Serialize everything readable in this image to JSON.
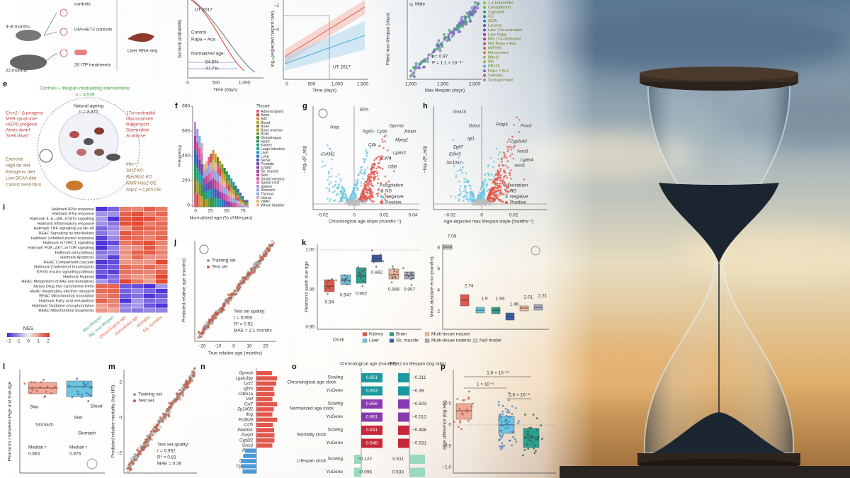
{
  "a": [
    "controls",
    "4–8 months",
    "UM-HET3 controls",
    "Liver RNA-seq",
    "22 months",
    "20 ITP treatments"
  ],
  "b": [
    "UT 2017",
    "Control",
    "Rapa + Aca",
    "Normalized age:",
    "54.9%",
    "47.7%",
    "Survival probability",
    "0",
    "500",
    "1,000",
    "Time (days)"
  ],
  "c": [
    "−2",
    "−4",
    "UT 2017",
    "log₁₀(expected hazard rate)",
    "0",
    "500",
    "1,000",
    "1,500",
    "Time (days)"
  ],
  "d": {
    "texts": [
      "Male",
      "Fitted max lifespan (days)",
      "r = 0.97",
      "P = 1.1 × 10⁻⁸⁷",
      "1,000",
      "1,500",
      "2,000",
      "Max lifespan (days)"
    ],
    "legend": [
      "1,3-butanediol",
      "Canagliflozin",
      "Captopril",
      "CC",
      "GGA",
      "Leucine",
      "Late 17α-oestradiol",
      "Late Rapa",
      "Mid 17α-oestradiol",
      "Mid Rapa + Aca",
      "MIF098",
      "Minocycline",
      "MitoQ",
      "NR",
      "PB125",
      "Rapa + Aca",
      "Sulindac",
      "Syringaresinol"
    ],
    "colors": [
      "#8dc63f",
      "#6dbf4b",
      "#2e9e6a",
      "#1f8a8a",
      "#3a7ab8",
      "#4c5fb0",
      "#6a4fa8",
      "#8a3f9e",
      "#a0408c",
      "#c04a7a",
      "#d05c5c",
      "#d87a3c",
      "#c9a23a",
      "#9fb43c",
      "#5aa8d8",
      "#7a66c8",
      "#b05aa0",
      "#d070b0"
    ]
  },
  "e": {
    "label": "e",
    "texts": [
      "Controls + lifespan-modulating interventions:",
      "n = 4,539",
      "Natural ageing",
      "n = 3,375"
    ],
    "left": [
      "Ercc1⁻ᐟΔ progeria",
      "MVA syndrome",
      "HGPS progeria",
      "Ames dwarf",
      "Snell dwarf"
    ],
    "right": [
      "17α-oestradiol",
      "Glucosamine",
      "Rapamycin",
      "Spermidine",
      "Acarbose"
    ],
    "bottom_left": [
      "Exercise",
      "High fat diet",
      "Ketogenic diet",
      "Low BCAA diet",
      "Caloric restriction"
    ],
    "bottom_right": [
      "Myc⁺ᐟ⁻",
      "Sirt1 KO",
      "Rps6kb1 KO",
      "NMR Has2 OE",
      "Nqo1 + Cyb5 OE"
    ]
  },
  "f": {
    "label": "f",
    "texts": [
      "800",
      "600",
      "400",
      "200",
      "0",
      "0",
      "25",
      "50",
      "75",
      "Frequency",
      "Normalized age (% of lifespan)",
      "Tissue"
    ],
    "tissues": [
      "Adrenal gland",
      "Aorta",
      "BAT",
      "Blood",
      "Bone",
      "Bone marrow",
      "Brain",
      "Oesophagus",
      "Heart",
      "Kidney",
      "Large intestine",
      "Liver",
      "Lung",
      "Nerve",
      "Prostate",
      "scWAT",
      "Sk. muscle",
      "Skin",
      "Small intestine",
      "Spinal cord",
      "Spleen",
      "Stomach",
      "Thymus",
      "Uterus",
      "vWAT",
      "Whole bladder"
    ],
    "colors": [
      "#e0607e",
      "#c05050",
      "#e08a3a",
      "#c8a020",
      "#8a7a30",
      "#a0a030",
      "#6a9a30",
      "#3a8a3a",
      "#20a050",
      "#20a080",
      "#20a0a0",
      "#2090c0",
      "#3070c0",
      "#4a58b0",
      "#6a4aa8",
      "#8a40a0",
      "#a8409a",
      "#c04890",
      "#d05aa8",
      "#d878c0",
      "#b890d0",
      "#9aa0d8",
      "#80b0e0",
      "#e0a0c0",
      "#c0c060",
      "#f0b0a0"
    ]
  },
  "g": {
    "label": "g",
    "genes": [
      "B2m",
      "Gpnmb",
      "Jchain",
      "Nrep",
      "Rgs5",
      "Cybb",
      "Col3a1",
      "Lgals3",
      "Cd74",
      "Ccl8",
      "Mpeg1",
      "C4b"
    ],
    "texts": [
      "−0.02",
      "0",
      "0.02",
      "0.04",
      "Chronological age slope (months⁻¹)",
      "−log₁₀(P_adj)",
      "Association",
      "NS",
      "Negative",
      "Positive"
    ]
  },
  "h": {
    "label": "h",
    "genes": [
      "Gna14",
      "Ddost",
      "Egfl7",
      "Igf1",
      "Elovl3",
      "Slc10a2",
      "Fmo3",
      "Cyp2c40",
      "Acot3",
      "Lgals4",
      "Acot1",
      "Fkbp5"
    ],
    "texts": [
      "−0.02",
      "0",
      "0.02",
      "Age-adjusted max lifespan slope (months⁻¹)",
      "−log₁₀(P_adj)",
      "Association",
      "NS",
      "Negative",
      "Positive"
    ]
  },
  "i": {
    "label": "i",
    "rows": [
      "Hallmark IFNα response",
      "Hallmark IFNγ response",
      "Hallmark IL-6–JAK–STAT3 signalling",
      "Hallmark Inflammatory response",
      "Hallmark TNF signalling via NF-κB",
      "REAC Signalling by interleukins",
      "Hallmark Unfolded protein response",
      "Hallmark mTORC1 signalling",
      "Hallmark PI3K–AKT–mTOR signalling",
      "Hallmark p53 pathway",
      "Hallmark Apoptosis",
      "REAC Complement cascade",
      "Hallmark Cholesterol homeostasis",
      "KEGG Insulin signalling pathway",
      "Hallmark Hypoxia",
      "REAC Metabolism of AAs and derivatives",
      "KEGG Drug met cytochrome P450",
      "REAC Respiratory electron transport",
      "REAC Mitochondrial translation",
      "Hallmark Fatty acid metabolism",
      "Hallmark Oxidative phosphorylation",
      "REAC Mitochondrial biogenesis"
    ],
    "columns": [
      "Max lifespan",
      "Adj. max lifespan",
      "Chronological age",
      "Normalized age",
      "Mortality",
      "Adj. mortality"
    ],
    "texts": [
      "NES",
      "−2",
      "−1",
      "0",
      "1",
      "2"
    ]
  },
  "j": {
    "label": "j",
    "texts": [
      "Training set",
      "Test set",
      "Test set quality:",
      "r = 0.958",
      "R² = 0.92",
      "MAE = 2.1 months",
      "Predicted relative age (months)",
      "−20",
      "−10",
      "0",
      "10",
      "20",
      "True relative age (months)"
    ]
  },
  "k": {
    "label": "k",
    "texts": [
      "1.00",
      "0.95",
      "0.90",
      "Pearson's r with true age",
      "Mean absolute error (months)",
      "8",
      "6",
      "4",
      "2",
      "Clock"
    ],
    "r_labels": [
      "0.94",
      "0.947",
      "0.952",
      "0.982",
      "0.956",
      "0.957"
    ],
    "mae_labels": [
      "7.09",
      "2.74",
      "1.9",
      "1.94",
      "1.46",
      "2.01",
      "2.21"
    ],
    "legend": [
      "Kidney",
      "Liver",
      "Brain",
      "Sk. muscle",
      "Multi-tissue mouse",
      "Multi-tissue rodents",
      "Null model"
    ],
    "colors": [
      "#e2574c",
      "#6cc5e0",
      "#2e9e8e",
      "#3a5ea8",
      "#f0b89a",
      "#a8a8c0",
      "#c8c8c8"
    ]
  },
  "l": {
    "label": "l",
    "texts": [
      "Pearson's r between tAge and true age",
      "Skin",
      "Blood",
      "Stomach",
      "Skin",
      "Stomach",
      "Median r",
      "0.863",
      "Median r",
      "0.876"
    ]
  },
  "m": {
    "label": "m",
    "texts": [
      "Training set",
      "Test set",
      "Test set quality:",
      "r = 0.952",
      "R² = 0.81",
      "MAE = 0.26",
      "Predicted relative mortality (log HR)",
      "2",
      "0",
      "−2"
    ]
  },
  "n": {
    "label": "n",
    "genes": [
      "Gpnmb",
      "Lgals3bp",
      "Lyz2",
      "Ighm",
      "Cdkn1a",
      "Vwf",
      "Cst7",
      "Sp140l2",
      "Ifng",
      "Pcdhb9",
      "Ccl5",
      "Plekhb1",
      "Parp3",
      "Cyp2f2",
      "Orm3",
      "Prkcz",
      "Bdh1",
      "Col1a1",
      "Cyp2c40",
      "Nrep"
    ]
  },
  "o": {
    "label": "o",
    "headers": [
      "Chronological age (months)",
      "Effect on lifespan (log ratio)"
    ],
    "clocks": [
      "Chronological age clock",
      "Normalized age clock",
      "Mortality clock",
      "Lifespan clock"
    ],
    "rows": [
      [
        "Scaling",
        "0.851",
        "−0.311"
      ],
      [
        "YuGene",
        "0.853",
        "−0.38"
      ],
      [
        "Scaling",
        "0.856",
        "−0.503"
      ],
      [
        "YuGene",
        "0.861",
        "−0.512"
      ],
      [
        "Scaling",
        "0.841",
        "−0.498"
      ],
      [
        "YuGene",
        "0.848",
        "−0.531"
      ],
      [
        "Scaling",
        "−0.122",
        "0.511"
      ],
      [
        "YuGene",
        "−0.096",
        "0.533"
      ]
    ]
  },
  "p": {
    "label": "p",
    "texts": [
      "1.5 × 10⁻¹⁰",
      "1 × 10⁻⁶",
      "2.6 × 10⁻⁶",
      "tAge difference (log HR)",
      "0.5",
      "0",
      "−0.5",
      "−1.0"
    ]
  }
}
